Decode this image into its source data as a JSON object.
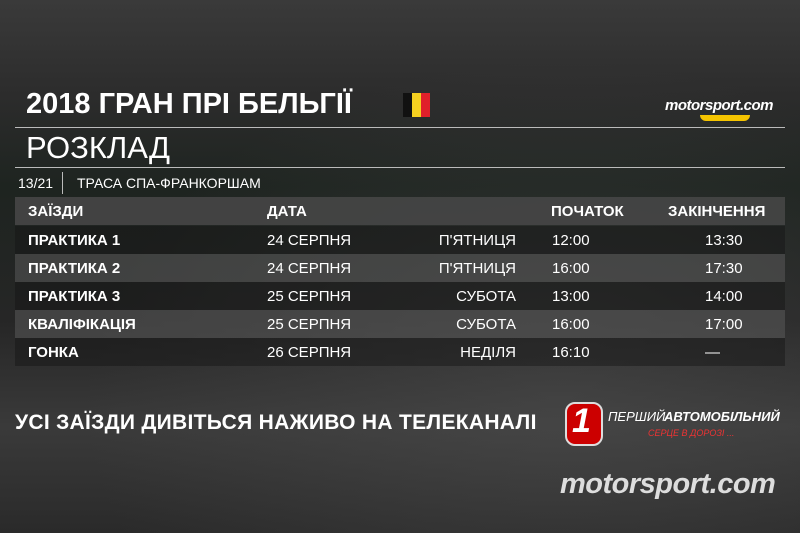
{
  "header": {
    "title": "2018 ГРАН ПРІ БЕЛЬГІЇ",
    "subtitle": "РОЗКЛАД",
    "round": "13/21",
    "track": "ТРАСА СПА-ФРАНКОРШАМ",
    "logo": "motorsport.com"
  },
  "table": {
    "headers": [
      "ЗАЇЗДИ",
      "ДАТА",
      "ПОЧАТОК",
      "ЗАКІНЧЕННЯ"
    ],
    "rows": [
      [
        "ПРАКТИКА 1",
        "24 СЕРПНЯ",
        "П'ЯТНИЦЯ",
        "12:00",
        "13:30"
      ],
      [
        "ПРАКТИКА 2",
        "24 СЕРПНЯ",
        "П'ЯТНИЦЯ",
        "16:00",
        "17:30"
      ],
      [
        "ПРАКТИКА 3",
        "25 СЕРПНЯ",
        "СУБОТА",
        "13:00",
        "14:00"
      ],
      [
        "КВАЛІФІКАЦІЯ",
        "25 СЕРПНЯ",
        "СУБОТА",
        "16:00",
        "17:00"
      ],
      [
        "ГОНКА",
        "26 СЕРПНЯ",
        "НЕДІЛЯ",
        "16:10",
        "—"
      ]
    ]
  },
  "footer": {
    "text": "УСІ ЗАЇЗДИ ДИВІТЬСЯ НАЖИВО НА ТЕЛЕКАНАЛІ",
    "channel_number": "1",
    "channel_line1": "ПЕРШИЙ",
    "channel_line2": "АВТОМОБІЛЬНИЙ",
    "channel_slogan": "СЕРЦЕ В ДОРОЗІ ...",
    "logo": "motorsport.com"
  }
}
